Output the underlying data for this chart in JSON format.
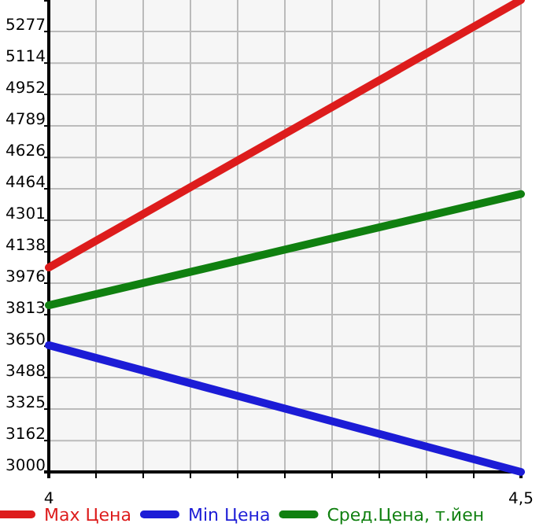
{
  "chart_data": {
    "type": "line",
    "x": [
      4,
      4.5
    ],
    "series": [
      {
        "name": "Max Цена",
        "color": "#dd1c1c",
        "values": [
          4057,
          5440
        ]
      },
      {
        "name": "Min Цена",
        "color": "#1c1cd6",
        "values": [
          3655,
          3000
        ]
      },
      {
        "name": "Сред.Цена, т.йен",
        "color": "#108010",
        "values": [
          3862,
          4437
        ]
      }
    ],
    "xlim": [
      4,
      4.5
    ],
    "xticks": [
      {
        "value": 4,
        "label": "4"
      },
      {
        "value": 4.05,
        "label": null
      },
      {
        "value": 4.1,
        "label": null
      },
      {
        "value": 4.15,
        "label": null
      },
      {
        "value": 4.2,
        "label": null
      },
      {
        "value": 4.25,
        "label": null
      },
      {
        "value": 4.3,
        "label": null
      },
      {
        "value": 4.35,
        "label": null
      },
      {
        "value": 4.4,
        "label": null
      },
      {
        "value": 4.45,
        "label": null
      },
      {
        "value": 4.5,
        "label": "4,5"
      }
    ],
    "ylim": [
      3000,
      5440
    ],
    "yticks": [
      3000,
      3162,
      3325,
      3488,
      3650,
      3813,
      3976,
      4138,
      4301,
      4464,
      4626,
      4789,
      4952,
      5114,
      5277
    ],
    "grid": true,
    "legend": "bottom",
    "marker": "none",
    "line_style": "solid"
  }
}
